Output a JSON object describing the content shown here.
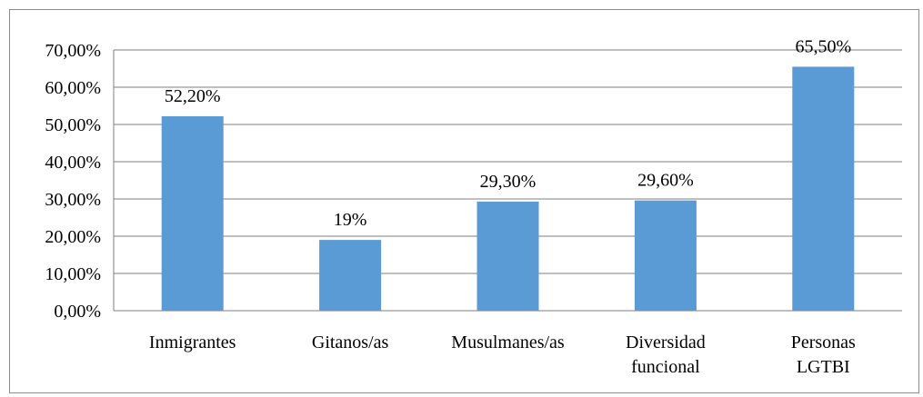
{
  "chart_data": {
    "type": "bar",
    "title": "",
    "xlabel": "",
    "ylabel": "",
    "categories": [
      [
        "Inmigrantes"
      ],
      [
        "Gitanos/as"
      ],
      [
        "Musulmanes/as"
      ],
      [
        "Diversidad",
        "funcional"
      ],
      [
        "Personas",
        "LGTBI"
      ]
    ],
    "values": [
      52.2,
      19,
      29.3,
      29.6,
      65.5
    ],
    "value_labels": [
      "52,20%",
      "19%",
      "29,30%",
      "29,60%",
      "65,50%"
    ],
    "y_ticks": [
      "0,00%",
      "10,00%",
      "20,00%",
      "30,00%",
      "40,00%",
      "50,00%",
      "60,00%",
      "70,00%"
    ],
    "ylim": [
      0,
      70
    ],
    "grid": true,
    "legend": "none",
    "bar_color": "#5b9bd5",
    "grid_color": "#7f7f7f"
  }
}
